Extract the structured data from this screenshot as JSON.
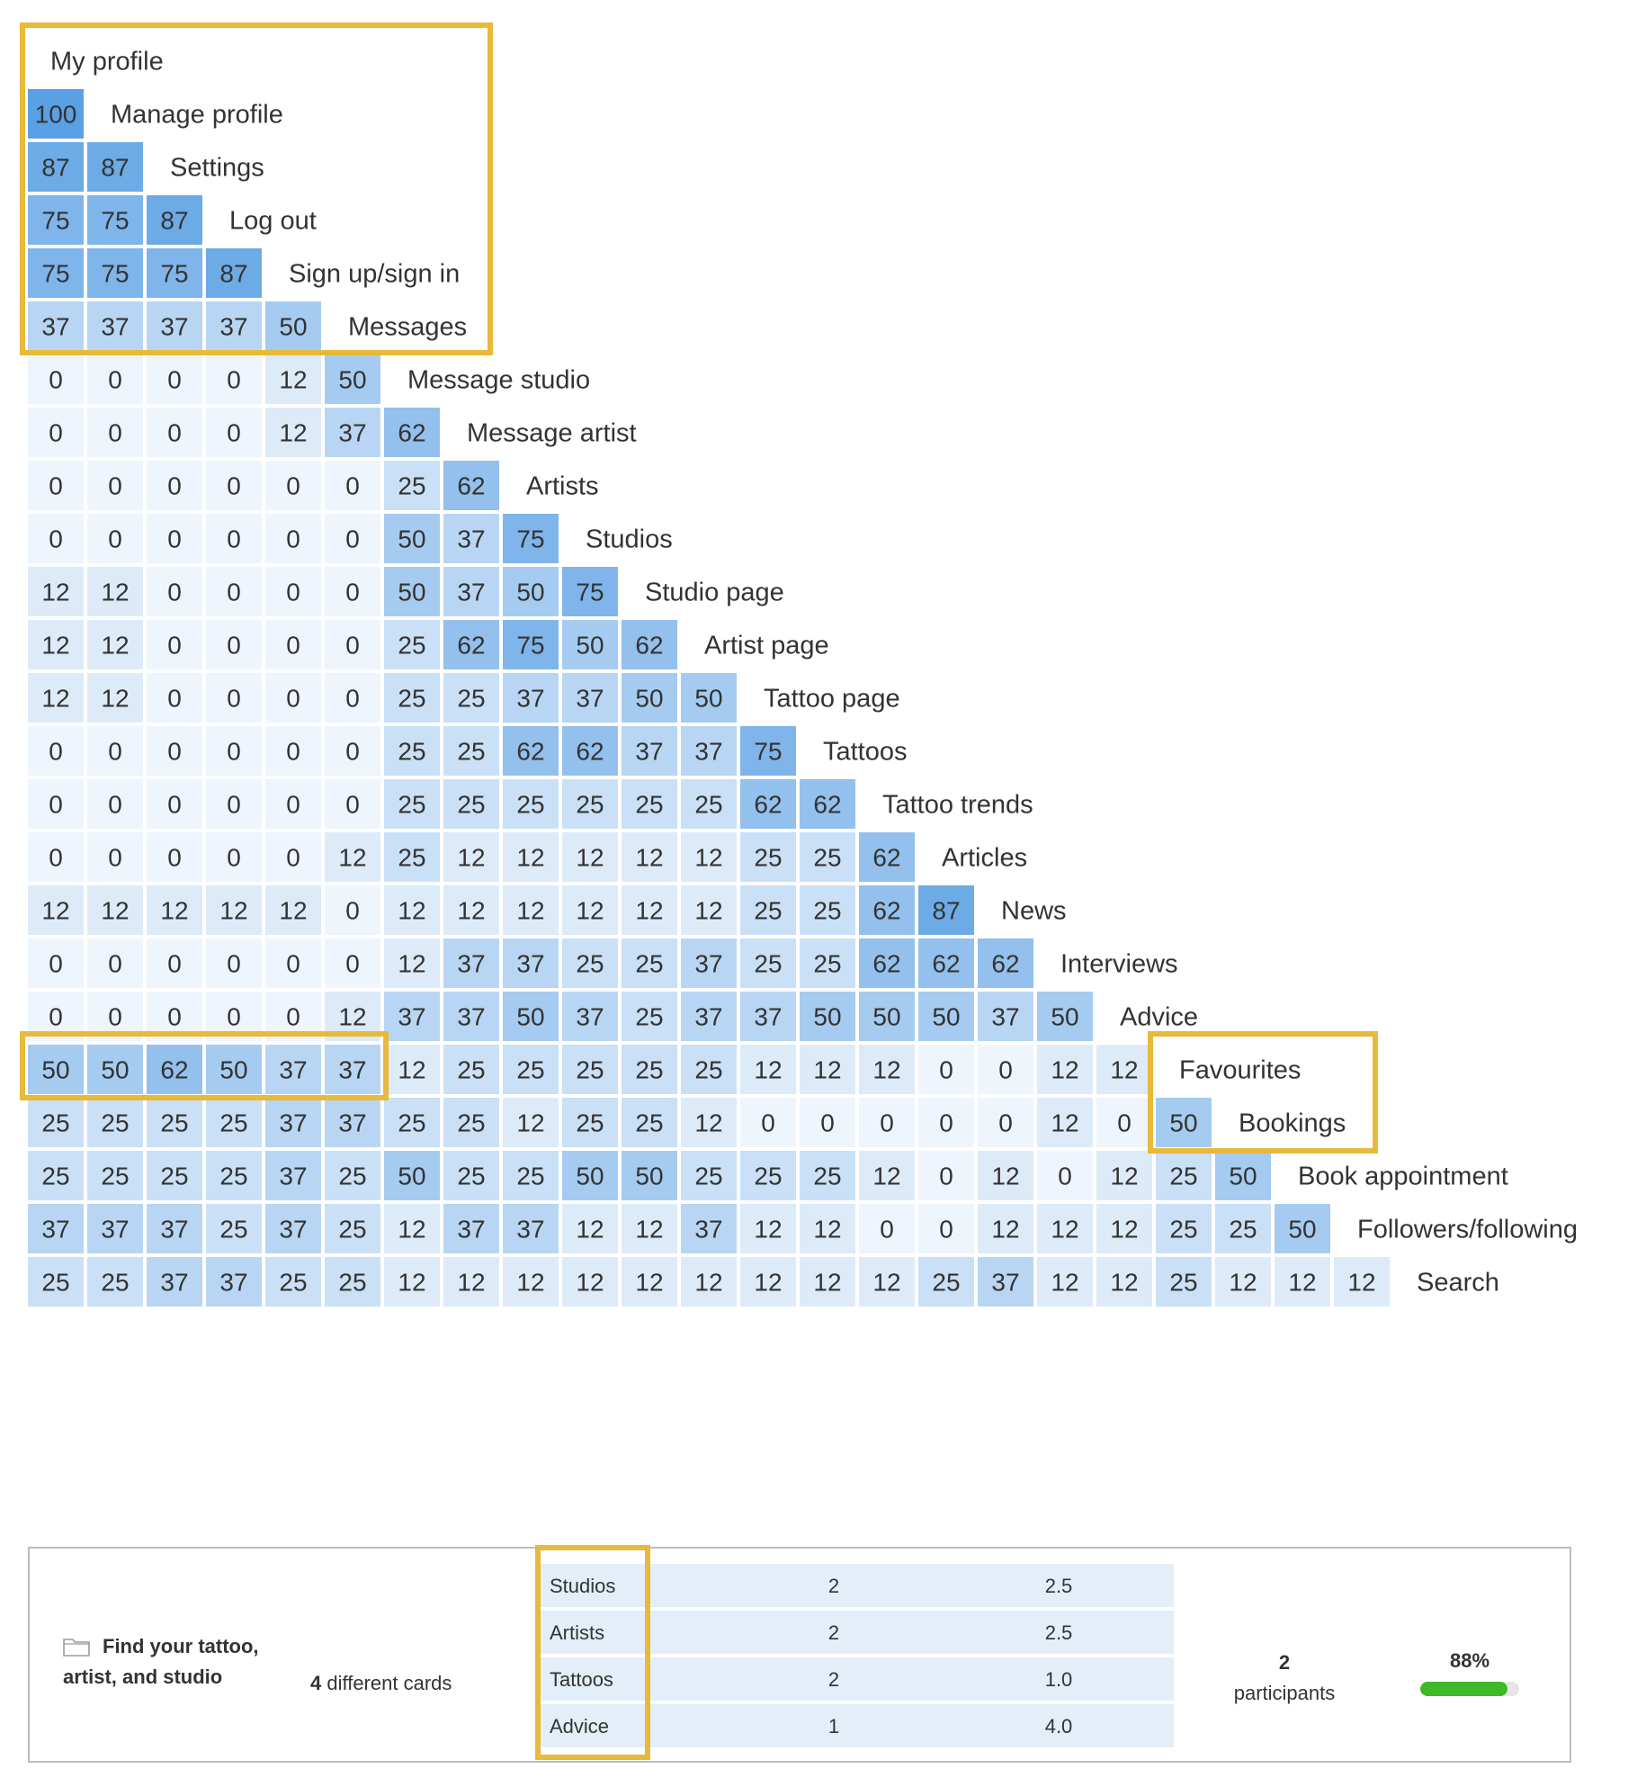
{
  "chart_data": {
    "type": "heatmap",
    "title": "",
    "labels": [
      "My profile",
      "Manage profile",
      "Settings",
      "Log out",
      "Sign up/sign in",
      "Messages",
      "Message studio",
      "Message artist",
      "Artists",
      "Studios",
      "Studio page",
      "Artist page",
      "Tattoo page",
      "Tattoos",
      "Tattoo trends",
      "Articles",
      "News",
      "Interviews",
      "Advice",
      "Favourites",
      "Bookings",
      "Book appointment",
      "Followers/following",
      "Search"
    ],
    "matrix": [
      [],
      [
        100
      ],
      [
        87,
        87
      ],
      [
        75,
        75,
        87
      ],
      [
        75,
        75,
        75,
        87
      ],
      [
        37,
        37,
        37,
        37,
        50
      ],
      [
        0,
        0,
        0,
        0,
        12,
        50
      ],
      [
        0,
        0,
        0,
        0,
        12,
        37,
        62
      ],
      [
        0,
        0,
        0,
        0,
        0,
        0,
        25,
        62
      ],
      [
        0,
        0,
        0,
        0,
        0,
        0,
        50,
        37,
        75
      ],
      [
        12,
        12,
        0,
        0,
        0,
        0,
        50,
        37,
        50,
        75
      ],
      [
        12,
        12,
        0,
        0,
        0,
        0,
        25,
        62,
        75,
        50,
        62
      ],
      [
        12,
        12,
        0,
        0,
        0,
        0,
        25,
        25,
        37,
        37,
        50,
        50
      ],
      [
        0,
        0,
        0,
        0,
        0,
        0,
        25,
        25,
        62,
        62,
        37,
        37,
        75
      ],
      [
        0,
        0,
        0,
        0,
        0,
        0,
        25,
        25,
        25,
        25,
        25,
        25,
        62,
        62
      ],
      [
        0,
        0,
        0,
        0,
        0,
        12,
        25,
        12,
        12,
        12,
        12,
        12,
        25,
        25,
        62
      ],
      [
        12,
        12,
        12,
        12,
        12,
        0,
        12,
        12,
        12,
        12,
        12,
        12,
        25,
        25,
        62,
        87
      ],
      [
        0,
        0,
        0,
        0,
        0,
        0,
        12,
        37,
        37,
        25,
        25,
        37,
        25,
        25,
        62,
        62,
        62
      ],
      [
        0,
        0,
        0,
        0,
        0,
        12,
        37,
        37,
        50,
        37,
        25,
        37,
        37,
        50,
        50,
        50,
        37,
        50
      ],
      [
        50,
        50,
        62,
        50,
        37,
        37,
        12,
        25,
        25,
        25,
        25,
        25,
        12,
        12,
        12,
        0,
        0,
        12,
        12
      ],
      [
        25,
        25,
        25,
        25,
        37,
        37,
        25,
        25,
        12,
        25,
        25,
        12,
        0,
        0,
        0,
        0,
        0,
        12,
        0,
        50
      ],
      [
        25,
        25,
        25,
        25,
        37,
        25,
        50,
        25,
        25,
        50,
        50,
        25,
        25,
        25,
        12,
        0,
        12,
        0,
        12,
        25,
        50
      ],
      [
        37,
        37,
        37,
        25,
        37,
        25,
        12,
        37,
        37,
        12,
        12,
        37,
        12,
        12,
        0,
        0,
        12,
        12,
        12,
        25,
        25,
        50
      ],
      [
        25,
        25,
        37,
        37,
        25,
        25,
        12,
        12,
        12,
        12,
        12,
        12,
        12,
        12,
        12,
        25,
        37,
        12,
        12,
        25,
        12,
        12,
        12
      ]
    ],
    "highlights": [
      {
        "rows": [
          0,
          5
        ],
        "cols": [
          0,
          4
        ]
      },
      {
        "rows": [
          19,
          19
        ],
        "cols": [
          0,
          5
        ]
      },
      {
        "rows": [
          19,
          20
        ],
        "cols": [
          19,
          19
        ]
      }
    ],
    "value_range": [
      0,
      100
    ]
  },
  "card_panel": {
    "category_title": "Find your tattoo, artist, and studio",
    "cards_count": "4",
    "cards_label": "different cards",
    "rows": [
      {
        "name": "Studios",
        "count": "2",
        "avg": "2.5"
      },
      {
        "name": "Artists",
        "count": "2",
        "avg": "2.5"
      },
      {
        "name": "Tattoos",
        "count": "2",
        "avg": "1.0"
      },
      {
        "name": "Advice",
        "count": "1",
        "avg": "4.0"
      }
    ],
    "participants_count": "2",
    "participants_label": "participants",
    "agreement_label": "88%",
    "agreement_value": 0.88,
    "icon": "folder-icon",
    "highlight_color": "#E8B93A",
    "progress_color": "#3fb829"
  }
}
